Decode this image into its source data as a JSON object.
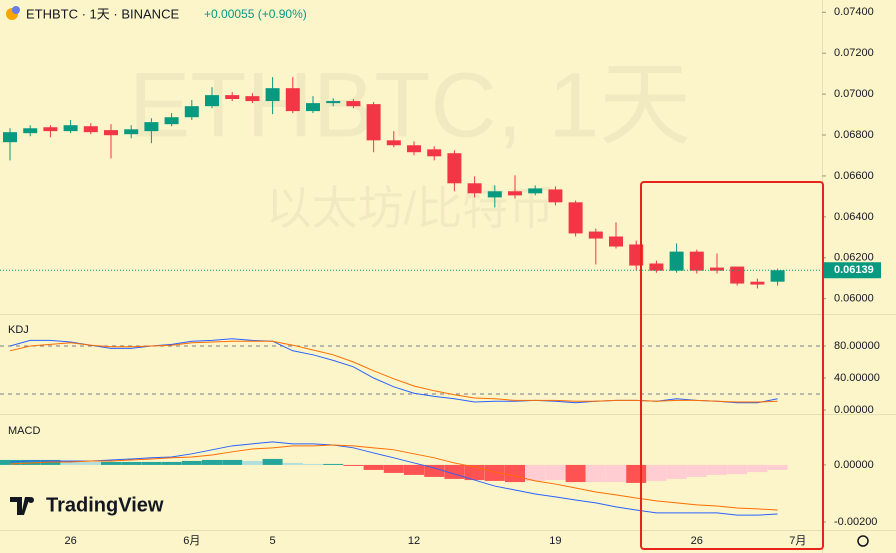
{
  "header": {
    "symbol": "ETHBTC · 1天 · BINANCE",
    "change": "+0.00055 (+0.90%)"
  },
  "watermark": {
    "title": "ETHBTC, 1天",
    "subtitle": "以太坊/比特币"
  },
  "brand": "TradingView",
  "chart_data": [
    {
      "type": "candlestick",
      "categories": [
        null,
        null,
        null,
        "26",
        null,
        null,
        null,
        null,
        null,
        "6月",
        null,
        null,
        null,
        "5",
        null,
        null,
        null,
        null,
        null,
        null,
        "12",
        null,
        null,
        null,
        null,
        null,
        null,
        "19",
        null,
        null,
        null,
        null,
        null,
        null,
        "26",
        null,
        null,
        null,
        null,
        "7月"
      ],
      "open": [
        0.06765,
        0.06809,
        0.06838,
        0.06819,
        0.06843,
        0.06824,
        0.06804,
        0.06819,
        0.06853,
        0.06887,
        0.06941,
        0.06995,
        0.0699,
        0.06966,
        0.07029,
        0.06917,
        0.06956,
        0.06966,
        0.06951,
        0.06774,
        0.0675,
        0.0673,
        0.06711,
        0.06564,
        0.06495,
        0.06525,
        0.06515,
        0.06534,
        0.06471,
        0.06328,
        0.06304,
        0.06265,
        0.06172,
        0.06137,
        0.0623,
        0.06152,
        0.06157,
        0.06083,
        0.06083,
        null
      ],
      "high": [
        0.06833,
        0.06848,
        0.06848,
        0.06873,
        0.06858,
        0.06853,
        0.06848,
        0.06882,
        0.06907,
        0.06971,
        0.07034,
        0.0701,
        0.07005,
        0.07083,
        0.07083,
        0.0699,
        0.0698,
        0.06976,
        0.06961,
        0.06819,
        0.06769,
        0.06745,
        0.06725,
        0.06598,
        0.06554,
        0.06603,
        0.06554,
        0.06549,
        0.0648,
        0.06343,
        0.06373,
        0.06284,
        0.06186,
        0.0627,
        0.0624,
        0.06221,
        0.06157,
        0.06098,
        0.06147,
        null
      ],
      "low": [
        0.06676,
        0.06794,
        0.06789,
        0.06809,
        0.06804,
        0.06686,
        0.06784,
        0.0676,
        0.06843,
        0.06873,
        0.06931,
        0.06966,
        0.06956,
        0.06902,
        0.06907,
        0.06907,
        0.06941,
        0.06931,
        0.06716,
        0.0674,
        0.06701,
        0.06676,
        0.06525,
        0.06495,
        0.06446,
        0.0649,
        0.06505,
        0.06456,
        0.06304,
        0.06167,
        0.06245,
        0.06137,
        0.06127,
        0.06127,
        0.06123,
        0.06123,
        0.06064,
        0.0605,
        0.06064,
        null
      ],
      "close": [
        0.06814,
        0.06833,
        0.06819,
        0.06848,
        0.06814,
        0.06799,
        0.06828,
        0.06863,
        0.06887,
        0.06941,
        0.06995,
        0.06976,
        0.06966,
        0.07029,
        0.06917,
        0.06956,
        0.06966,
        0.06941,
        0.06774,
        0.0675,
        0.06716,
        0.06696,
        0.06564,
        0.06515,
        0.06525,
        0.06505,
        0.06539,
        0.06471,
        0.06319,
        0.06294,
        0.06255,
        0.06162,
        0.06137,
        0.0623,
        0.06137,
        0.06137,
        0.06074,
        0.06069,
        0.06139,
        null
      ],
      "up_color": "#089981",
      "down_color": "#f23645",
      "ylim": [
        0.0593,
        0.0746
      ],
      "yticks": [
        {
          "value": 0.06,
          "label": "0.06000"
        },
        {
          "value": 0.062,
          "label": "0.06200"
        },
        {
          "value": 0.064,
          "label": "0.06400"
        },
        {
          "value": 0.066,
          "label": "0.06600"
        },
        {
          "value": 0.068,
          "label": "0.06800"
        },
        {
          "value": 0.07,
          "label": "0.07000"
        },
        {
          "value": 0.072,
          "label": "0.07200"
        },
        {
          "value": 0.074,
          "label": "0.07400"
        }
      ]
    },
    {
      "type": "line",
      "title": "KDJ",
      "series": [
        {
          "color": "#2962ff",
          "values": [
            80,
            87,
            87,
            85,
            81,
            77,
            77,
            80,
            82,
            86,
            87,
            89,
            87,
            86,
            74,
            69,
            62,
            54,
            40,
            29,
            21,
            17,
            14,
            10,
            11,
            11,
            12,
            11,
            9,
            11,
            12,
            12,
            11,
            14,
            12,
            11,
            9,
            9,
            14,
            null
          ]
        },
        {
          "color": "#ff6d00",
          "values": [
            74,
            80,
            82,
            84,
            81,
            79,
            79,
            80,
            81,
            84,
            85,
            86,
            86,
            86,
            81,
            75,
            69,
            60,
            49,
            39,
            30,
            24,
            19,
            15,
            14,
            12,
            12,
            12,
            11,
            11,
            12,
            12,
            11,
            12,
            12,
            11,
            10,
            10,
            11,
            null
          ]
        }
      ],
      "levels": [
        80,
        20
      ],
      "ylim": [
        -3.75,
        118.75
      ],
      "yticks": [
        {
          "value": 80,
          "label": "80.00000"
        },
        {
          "value": 40,
          "label": "40.00000"
        },
        {
          "value": 0,
          "label": "0.00000"
        }
      ]
    },
    {
      "type": "macd",
      "title": "MACD",
      "histogram": [
        0.000175,
        0.000175,
        0.000175,
        0.00014,
        0.000105,
        0.000105,
        0.000105,
        0.000105,
        0.000105,
        0.00014,
        0.000175,
        0.000175,
        0.00014,
        0.00021,
        7e-05,
        3.5e-05,
        3.5e-05,
        -3.5e-05,
        -0.000175,
        -0.00028,
        -0.00035,
        -0.00042,
        -0.00049,
        -0.00053,
        -0.00056,
        -0.0006,
        -0.00056,
        -0.00053,
        -0.0006,
        -0.0006,
        -0.0006,
        -0.00063,
        -0.00056,
        -0.00049,
        -0.00042,
        -0.00035,
        -0.00032,
        -0.00025,
        -0.000175,
        null
      ],
      "histogram_colors": [
        "#26a69a",
        "#b2dfdb",
        "#ff5252",
        "#ffcdd2"
      ],
      "series": [
        {
          "color": "#2962ff",
          "values": [
            0.000105,
            0.00014,
            0.00014,
            0.00014,
            0.00014,
            0.000175,
            0.00021,
            0.00025,
            0.00028,
            0.00039,
            0.00053,
            0.00067,
            0.00074,
            0.00081,
            0.00074,
            0.00074,
            0.0007,
            0.0006,
            0.00042,
            0.00025,
            7e-05,
            -0.000105,
            -0.00032,
            -0.00053,
            -0.00074,
            -0.00088,
            -0.00102,
            -0.00112,
            -0.00123,
            -0.00133,
            -0.00147,
            -0.00158,
            -0.00168,
            -0.00168,
            -0.00168,
            -0.00168,
            -0.00176,
            -0.00176,
            -0.00172,
            null
          ]
        },
        {
          "color": "#ff6d00",
          "values": [
            3.5e-05,
            7e-05,
            0.000105,
            0.000105,
            0.00014,
            0.00014,
            0.000175,
            0.00021,
            0.00025,
            0.00028,
            0.00035,
            0.00046,
            0.00056,
            0.0006,
            0.00067,
            0.00067,
            0.0007,
            0.00067,
            0.0006,
            0.00053,
            0.00039,
            0.00025,
            7e-05,
            -7e-05,
            -0.00025,
            -0.00039,
            -0.00056,
            -0.00067,
            -0.00081,
            -0.00095,
            -0.00105,
            -0.00116,
            -0.00126,
            -0.00133,
            -0.0014,
            -0.00144,
            -0.00151,
            -0.00154,
            -0.00158,
            null
          ]
        }
      ],
      "ylim": [
        -0.00228,
        0.00175
      ],
      "yticks": [
        {
          "value": 0,
          "label": "0.00000"
        },
        {
          "value": -0.002,
          "label": "-0.00200"
        }
      ]
    }
  ]
}
